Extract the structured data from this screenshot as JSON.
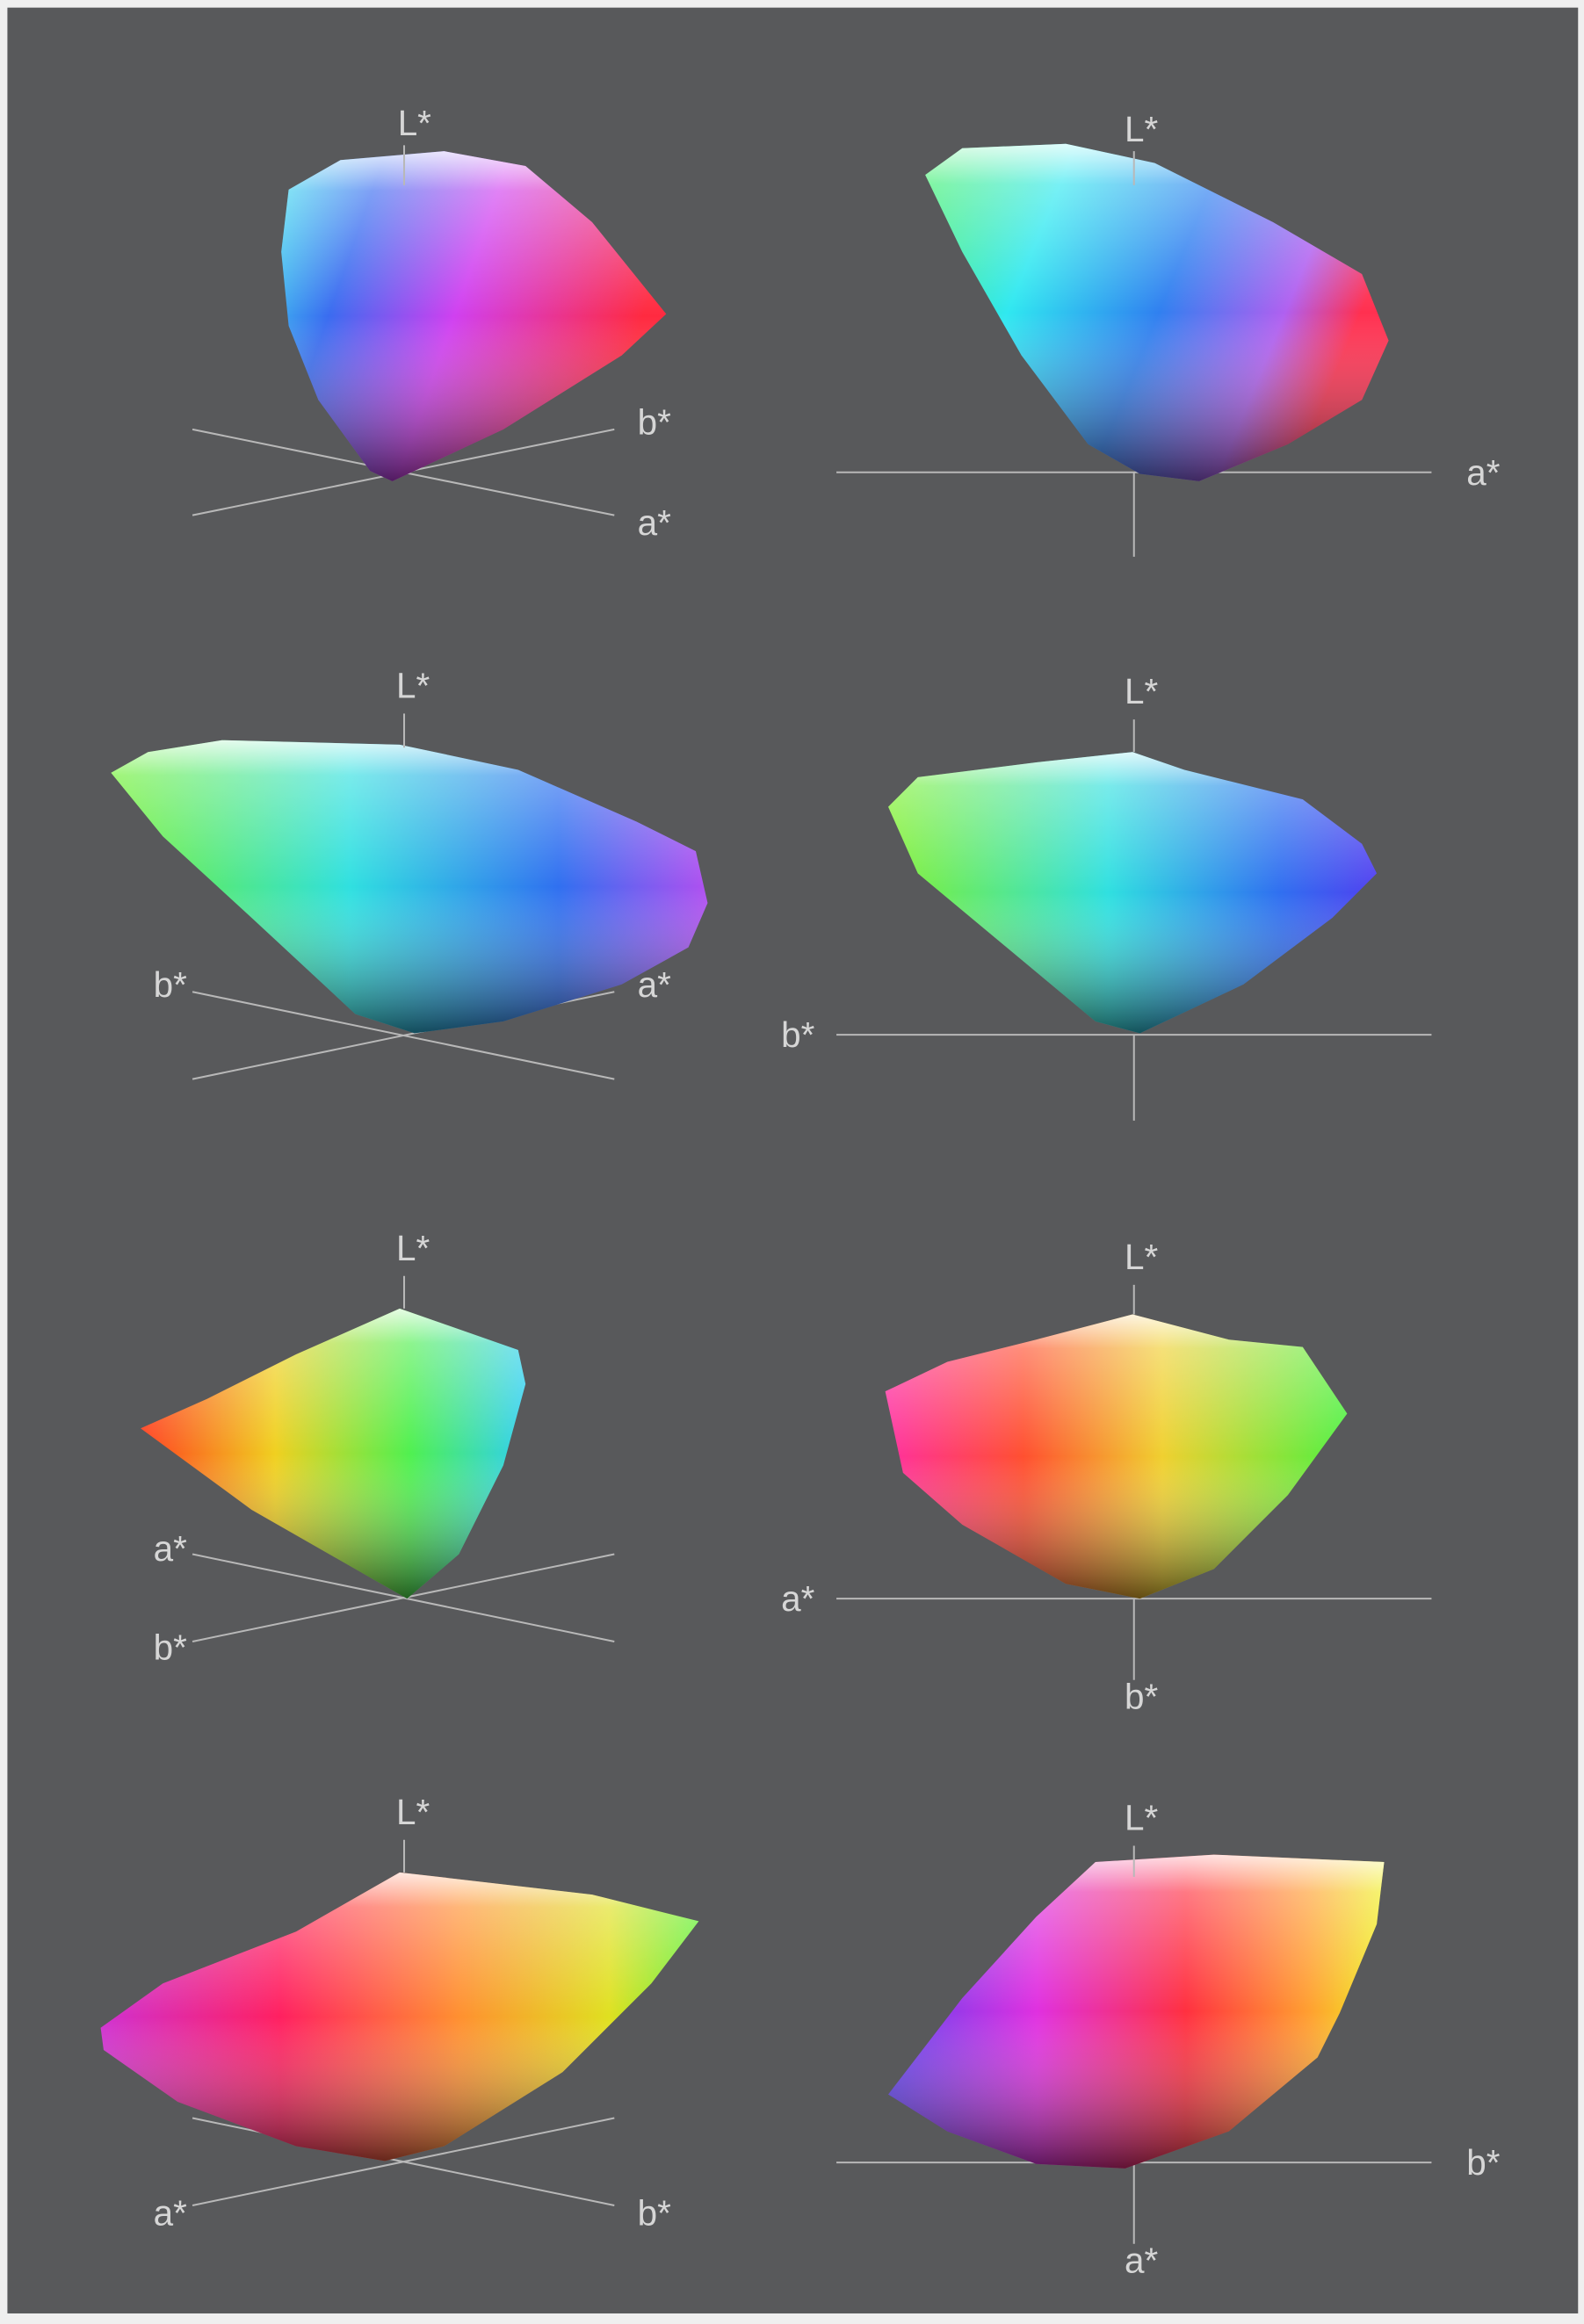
{
  "panels": [
    {
      "labels": [
        "L*",
        "b*",
        "a*"
      ]
    },
    {
      "labels": [
        "L*",
        "a*"
      ]
    },
    {
      "labels": [
        "L*",
        "b*",
        "a*"
      ]
    },
    {
      "labels": [
        "L*",
        "b*"
      ]
    },
    {
      "labels": [
        "L*",
        "a*",
        "b*"
      ]
    },
    {
      "labels": [
        "L*",
        "a*",
        "b*"
      ]
    },
    {
      "labels": [
        "L*",
        "a*",
        "b*"
      ]
    },
    {
      "labels": [
        "L*",
        "b*",
        "a*"
      ]
    }
  ]
}
